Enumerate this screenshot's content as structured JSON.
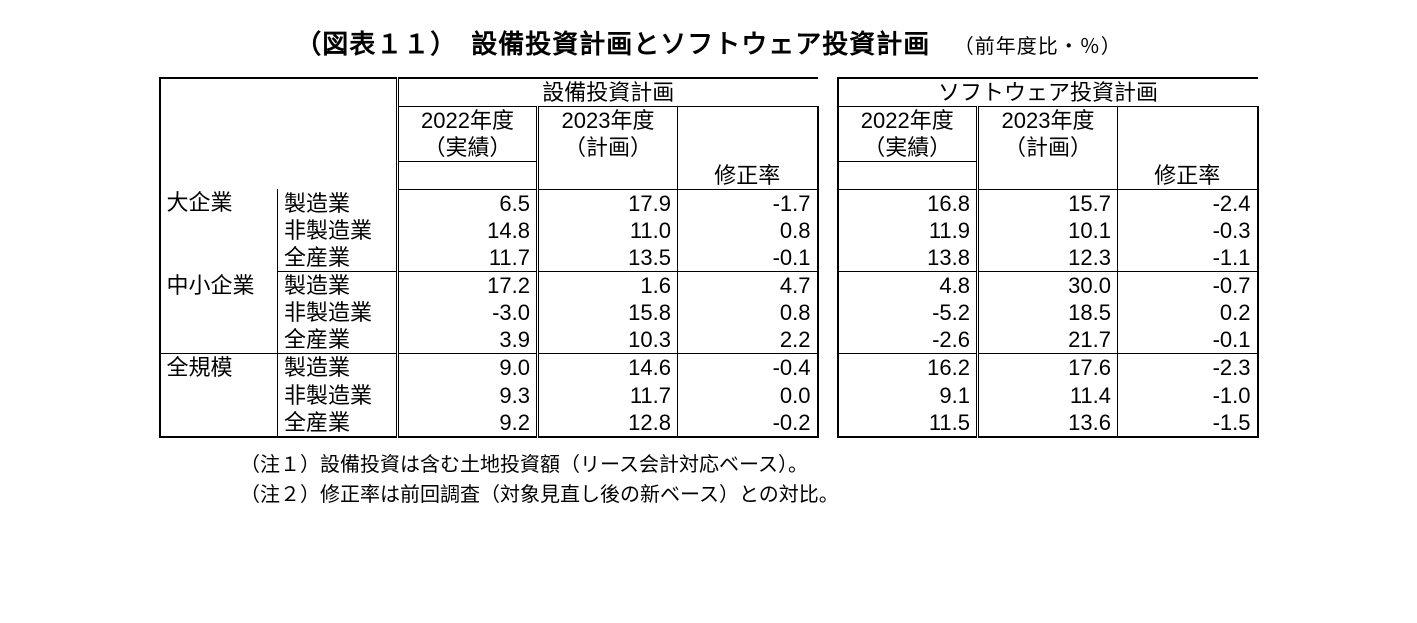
{
  "title_main": "（図表１１）　設備投資計画とソフトウェア投資計画",
  "title_sub": "（前年度比・％）",
  "headers": {
    "group_a": "設備投資計画",
    "group_b": "ソフトウェア投資計画",
    "fy2022": "2022年度",
    "fy2022_sub": "（実績）",
    "fy2023": "2023年度",
    "fy2023_sub": "（計画）",
    "revision": "修正率"
  },
  "categories": {
    "c0": "大企業",
    "c1": "中小企業",
    "c2": "全規模"
  },
  "sectors": {
    "s0": "製造業",
    "s1": "非製造業",
    "s2": "全産業"
  },
  "table": {
    "type": "table",
    "columns": [
      "category",
      "sector",
      "A_fy2022",
      "A_fy2023",
      "A_rev",
      "B_fy2022",
      "B_fy2023",
      "B_rev"
    ],
    "col_align": [
      "left",
      "left",
      "right",
      "right",
      "right",
      "right",
      "right",
      "right"
    ],
    "font_size_pt": 16,
    "border_color": "#000000",
    "background_color": "#ffffff",
    "rows": [
      [
        "大企業",
        "製造業",
        "6.5",
        "17.9",
        "-1.7",
        "16.8",
        "15.7",
        "-2.4"
      ],
      [
        "大企業",
        "非製造業",
        "14.8",
        "11.0",
        "0.8",
        "11.9",
        "10.1",
        "-0.3"
      ],
      [
        "大企業",
        "全産業",
        "11.7",
        "13.5",
        "-0.1",
        "13.8",
        "12.3",
        "-1.1"
      ],
      [
        "中小企業",
        "製造業",
        "17.2",
        "1.6",
        "4.7",
        "4.8",
        "30.0",
        "-0.7"
      ],
      [
        "中小企業",
        "非製造業",
        "-3.0",
        "15.8",
        "0.8",
        "-5.2",
        "18.5",
        "0.2"
      ],
      [
        "中小企業",
        "全産業",
        "3.9",
        "10.3",
        "2.2",
        "-2.6",
        "21.7",
        "-0.1"
      ],
      [
        "全規模",
        "製造業",
        "9.0",
        "14.6",
        "-0.4",
        "16.2",
        "17.6",
        "-2.3"
      ],
      [
        "全規模",
        "非製造業",
        "9.3",
        "11.7",
        "0.0",
        "9.1",
        "11.4",
        "-1.0"
      ],
      [
        "全規模",
        "全産業",
        "9.2",
        "12.8",
        "-0.2",
        "11.5",
        "13.6",
        "-1.5"
      ]
    ]
  },
  "notes": {
    "n0": "（注１）設備投資は含む土地投資額（リース会計対応ベース）。",
    "n1": "（注２）修正率は前回調査（対象見直し後の新ベース）との対比。"
  }
}
